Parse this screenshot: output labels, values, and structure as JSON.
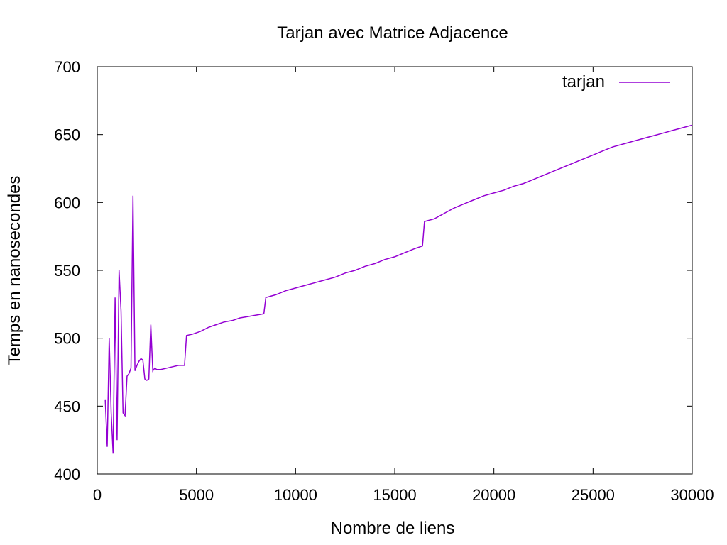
{
  "chart_data": {
    "type": "line",
    "title": "Tarjan avec Matrice Adjacence",
    "xlabel": "Nombre de liens",
    "ylabel": "Temps en nanosecondes",
    "xlim": [
      0,
      30000
    ],
    "ylim": [
      400,
      700
    ],
    "x_ticks": [
      0,
      5000,
      10000,
      15000,
      20000,
      25000,
      30000
    ],
    "y_ticks": [
      400,
      450,
      500,
      550,
      600,
      650,
      700
    ],
    "grid": false,
    "legend_position": "top-right",
    "series": [
      {
        "name": "tarjan",
        "color": "#9400d3",
        "x": [
          400,
          500,
          600,
          700,
          800,
          900,
          1000,
          1100,
          1200,
          1300,
          1400,
          1500,
          1600,
          1700,
          1800,
          1900,
          2000,
          2100,
          2200,
          2300,
          2400,
          2500,
          2600,
          2700,
          2800,
          2900,
          3000,
          3200,
          3500,
          3800,
          4100,
          4400,
          4500,
          4800,
          5200,
          5600,
          6000,
          6400,
          6800,
          7200,
          7600,
          8000,
          8400,
          8500,
          9000,
          9500,
          10000,
          10500,
          11000,
          11500,
          12000,
          12500,
          13000,
          13500,
          14000,
          14500,
          15000,
          15500,
          16000,
          16400,
          16500,
          17000,
          17500,
          18000,
          18500,
          19000,
          19500,
          20000,
          20500,
          21000,
          21500,
          22000,
          22500,
          23000,
          23500,
          24000,
          24500,
          25000,
          25500,
          26000,
          26500,
          27000,
          27500,
          28000,
          28500,
          29000,
          29500,
          30000
        ],
        "y": [
          455,
          420,
          500,
          445,
          415,
          530,
          425,
          550,
          520,
          445,
          443,
          472,
          474,
          478,
          605,
          476,
          480,
          483,
          485,
          484,
          470,
          469,
          470,
          510,
          476,
          478,
          477,
          477,
          478,
          479,
          480,
          480,
          502,
          503,
          505,
          508,
          510,
          512,
          513,
          515,
          516,
          517,
          518,
          530,
          532,
          535,
          537,
          539,
          541,
          543,
          545,
          548,
          550,
          553,
          555,
          558,
          560,
          563,
          566,
          568,
          586,
          588,
          592,
          596,
          599,
          602,
          605,
          607,
          609,
          612,
          614,
          617,
          620,
          623,
          626,
          629,
          632,
          635,
          638,
          641,
          643,
          645,
          647,
          649,
          651,
          653,
          655,
          657
        ]
      }
    ]
  }
}
